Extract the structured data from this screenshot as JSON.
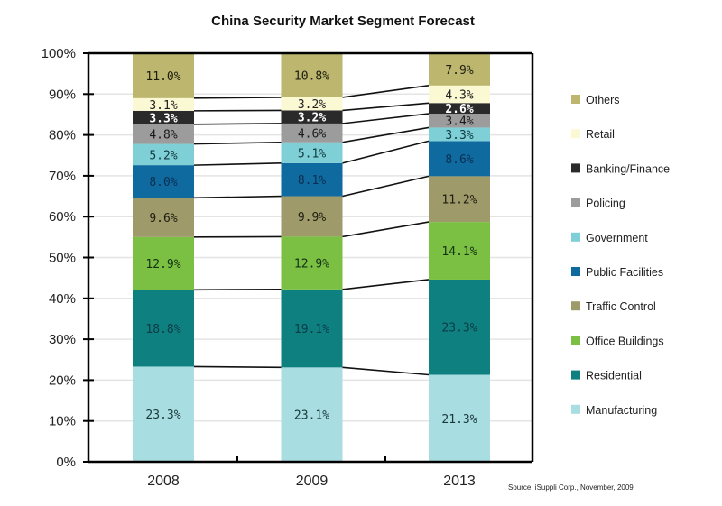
{
  "chart_data": {
    "type": "bar",
    "stacked": true,
    "percent": true,
    "title": "China Security Market Segment Forecast",
    "xlabel": "",
    "ylabel": "",
    "ylim": [
      0,
      100
    ],
    "yticks": [
      "0%",
      "10%",
      "20%",
      "30%",
      "40%",
      "50%",
      "60%",
      "70%",
      "80%",
      "90%",
      "100%"
    ],
    "categories": [
      "2008",
      "2009",
      "2013"
    ],
    "legend_position": "right",
    "series": [
      {
        "name": "Manufacturing",
        "color": "#a8dde2",
        "label_color": "#1a3a3a",
        "values": [
          23.3,
          23.1,
          21.3
        ],
        "labels": [
          "23.3%",
          "23.1%",
          "21.3%"
        ]
      },
      {
        "name": "Residential",
        "color": "#0e8080",
        "label_color": "#0b3b45",
        "values": [
          18.8,
          19.1,
          23.3
        ],
        "labels": [
          "18.8%",
          "19.1%",
          "23.3%"
        ]
      },
      {
        "name": "Office Buildings",
        "color": "#7bc043",
        "label_color": "#143214",
        "values": [
          12.9,
          12.9,
          14.1
        ],
        "labels": [
          "12.9%",
          "12.9%",
          "14.1%"
        ]
      },
      {
        "name": "Traffic Control",
        "color": "#9e9a6a",
        "label_color": "#1e1e10",
        "values": [
          9.6,
          9.9,
          11.2
        ],
        "labels": [
          "9.6%",
          "9.9%",
          "11.2%"
        ]
      },
      {
        "name": "Public Facilities",
        "color": "#0f6aa0",
        "label_color": "#0b2f52",
        "values": [
          8.0,
          8.1,
          8.6
        ],
        "labels": [
          "8.0%",
          "8.1%",
          "8.6%"
        ]
      },
      {
        "name": "Government",
        "color": "#7fd0d6",
        "label_color": "#103a40",
        "values": [
          5.2,
          5.1,
          3.3
        ],
        "labels": [
          "5.2%",
          "5.1%",
          "3.3%"
        ]
      },
      {
        "name": "Policing",
        "color": "#9c9c9c",
        "label_color": "#1a1a1a",
        "values": [
          4.8,
          4.6,
          3.4
        ],
        "labels": [
          "4.8%",
          "4.6%",
          "3.4%"
        ]
      },
      {
        "name": "Banking/Finance",
        "color": "#2a2a2a",
        "label_color": "#ffffff",
        "values": [
          3.3,
          3.2,
          2.6
        ],
        "labels": [
          "3.3%",
          "3.2%",
          "2.6%"
        ]
      },
      {
        "name": "Retail",
        "color": "#fbf8d4",
        "label_color": "#222222",
        "values": [
          3.1,
          3.2,
          4.3
        ],
        "labels": [
          "3.1%",
          "3.2%",
          "4.3%"
        ]
      },
      {
        "name": "Others",
        "color": "#bcb66e",
        "label_color": "#1e1e10",
        "values": [
          11.0,
          10.8,
          7.9
        ],
        "labels": [
          "11.0%",
          "10.8%",
          "7.9%"
        ]
      }
    ],
    "legend_order": [
      "Others",
      "Retail",
      "Banking/Finance",
      "Policing",
      "Government",
      "Public Facilities",
      "Traffic Control",
      "Office Buildings",
      "Residential",
      "Manufacturing"
    ],
    "annotations": [
      "Source: iSuppli Corp., November, 2009"
    ]
  }
}
